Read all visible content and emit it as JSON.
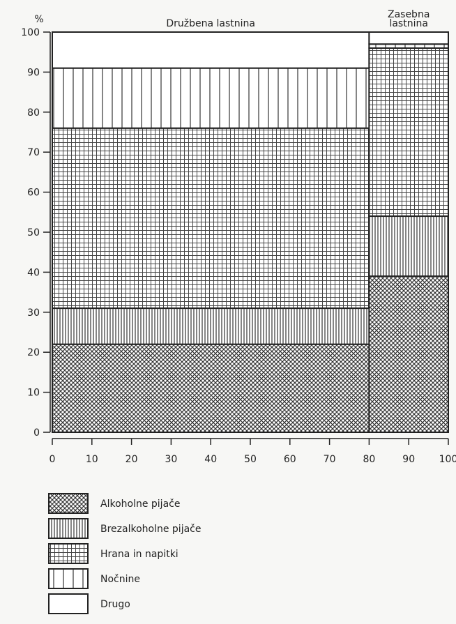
{
  "chart_data": {
    "type": "mekko",
    "y_unit_label": "%",
    "ylim": [
      0,
      100
    ],
    "y_ticks": [
      0,
      10,
      20,
      30,
      40,
      50,
      60,
      70,
      80,
      90,
      100
    ],
    "xlim": [
      0,
      100
    ],
    "x_ticks": [
      0,
      10,
      20,
      30,
      40,
      50,
      60,
      70,
      80,
      90,
      100
    ],
    "grid": false,
    "legend_position": "bottom-left",
    "columns": [
      {
        "name": "Družbena lastnina",
        "x_start": 0,
        "x_end": 80,
        "segments": [
          {
            "series": "Alkoholne pijače",
            "value": 22
          },
          {
            "series": "Brezalkoholne pijače",
            "value": 9
          },
          {
            "series": "Hrana in napitki",
            "value": 45
          },
          {
            "series": "Nočnine",
            "value": 15
          },
          {
            "series": "Drugo",
            "value": 9
          }
        ]
      },
      {
        "name": "Zasebna lastnina",
        "x_start": 80,
        "x_end": 100,
        "segments": [
          {
            "series": "Alkoholne pijače",
            "value": 39
          },
          {
            "series": "Brezalkoholne pijače",
            "value": 15
          },
          {
            "series": "Hrana in napitki",
            "value": 42
          },
          {
            "series": "Nočnine",
            "value": 1
          },
          {
            "series": "Drugo",
            "value": 3
          }
        ]
      }
    ],
    "series": [
      {
        "name": "Alkoholne pijače",
        "pattern": "crosshatch"
      },
      {
        "name": "Brezalkoholne pijače",
        "pattern": "dense-vertical"
      },
      {
        "name": "Hrana in napitki",
        "pattern": "grid"
      },
      {
        "name": "Nočnine",
        "pattern": "wide-vertical"
      },
      {
        "name": "Drugo",
        "pattern": "blank"
      }
    ]
  }
}
